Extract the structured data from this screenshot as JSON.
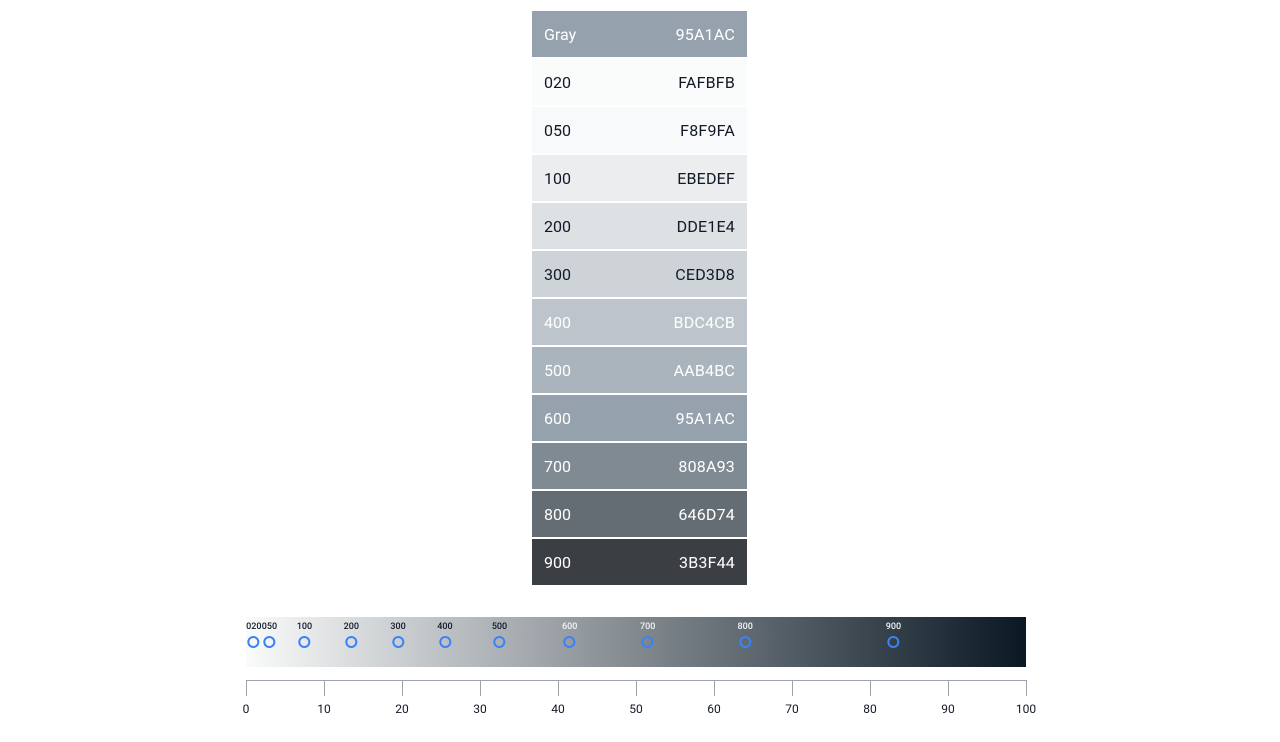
{
  "palette": {
    "name": "Gray",
    "header": {
      "label": "Gray",
      "hex": "95A1AC",
      "bg": "#95A1AC",
      "fg": "#ffffff"
    },
    "swatches": [
      {
        "label": "020",
        "hex": "FAFBFB",
        "bg": "#FAFBFB",
        "fg": "#111827"
      },
      {
        "label": "050",
        "hex": "F8F9FA",
        "bg": "#F8F9FA",
        "fg": "#111827"
      },
      {
        "label": "100",
        "hex": "EBEDEF",
        "bg": "#EBEDEF",
        "fg": "#111827"
      },
      {
        "label": "200",
        "hex": "DDE1E4",
        "bg": "#DDE1E4",
        "fg": "#111827"
      },
      {
        "label": "300",
        "hex": "CED3D8",
        "bg": "#CED3D8",
        "fg": "#111827"
      },
      {
        "label": "400",
        "hex": "BDC4CB",
        "bg": "#BDC4CB",
        "fg": "#ffffff"
      },
      {
        "label": "500",
        "hex": "AAB4BC",
        "bg": "#AAB4BC",
        "fg": "#ffffff"
      },
      {
        "label": "600",
        "hex": "95A1AC",
        "bg": "#95A1AC",
        "fg": "#ffffff"
      },
      {
        "label": "700",
        "hex": "808A93",
        "bg": "#808A93",
        "fg": "#ffffff"
      },
      {
        "label": "800",
        "hex": "646D74",
        "bg": "#646D74",
        "fg": "#ffffff"
      },
      {
        "label": "900",
        "hex": "3B3F44",
        "bg": "#3B3F44",
        "fg": "#ffffff"
      }
    ]
  },
  "gradient": {
    "start_color": "#FAFBFB",
    "end_color": "#0a1824",
    "points": [
      {
        "label": "020",
        "pos": 1.0,
        "fg": "#111827"
      },
      {
        "label": "050",
        "pos": 3.0,
        "fg": "#111827"
      },
      {
        "label": "100",
        "pos": 7.5,
        "fg": "#111827"
      },
      {
        "label": "200",
        "pos": 13.5,
        "fg": "#111827"
      },
      {
        "label": "300",
        "pos": 19.5,
        "fg": "#111827"
      },
      {
        "label": "400",
        "pos": 25.5,
        "fg": "#111827"
      },
      {
        "label": "500",
        "pos": 32.5,
        "fg": "#111827"
      },
      {
        "label": "600",
        "pos": 41.5,
        "fg": "#f3f4f6"
      },
      {
        "label": "700",
        "pos": 51.5,
        "fg": "#f3f4f6"
      },
      {
        "label": "800",
        "pos": 64.0,
        "fg": "#f3f4f6"
      },
      {
        "label": "900",
        "pos": 83.0,
        "fg": "#f3f4f6"
      }
    ]
  },
  "ruler": {
    "min": 0,
    "max": 100,
    "ticks": [
      0,
      10,
      20,
      30,
      40,
      50,
      60,
      70,
      80,
      90,
      100
    ],
    "tick_color": "#9ca3af",
    "label_color": "#111827",
    "label_fontsize": 12
  }
}
